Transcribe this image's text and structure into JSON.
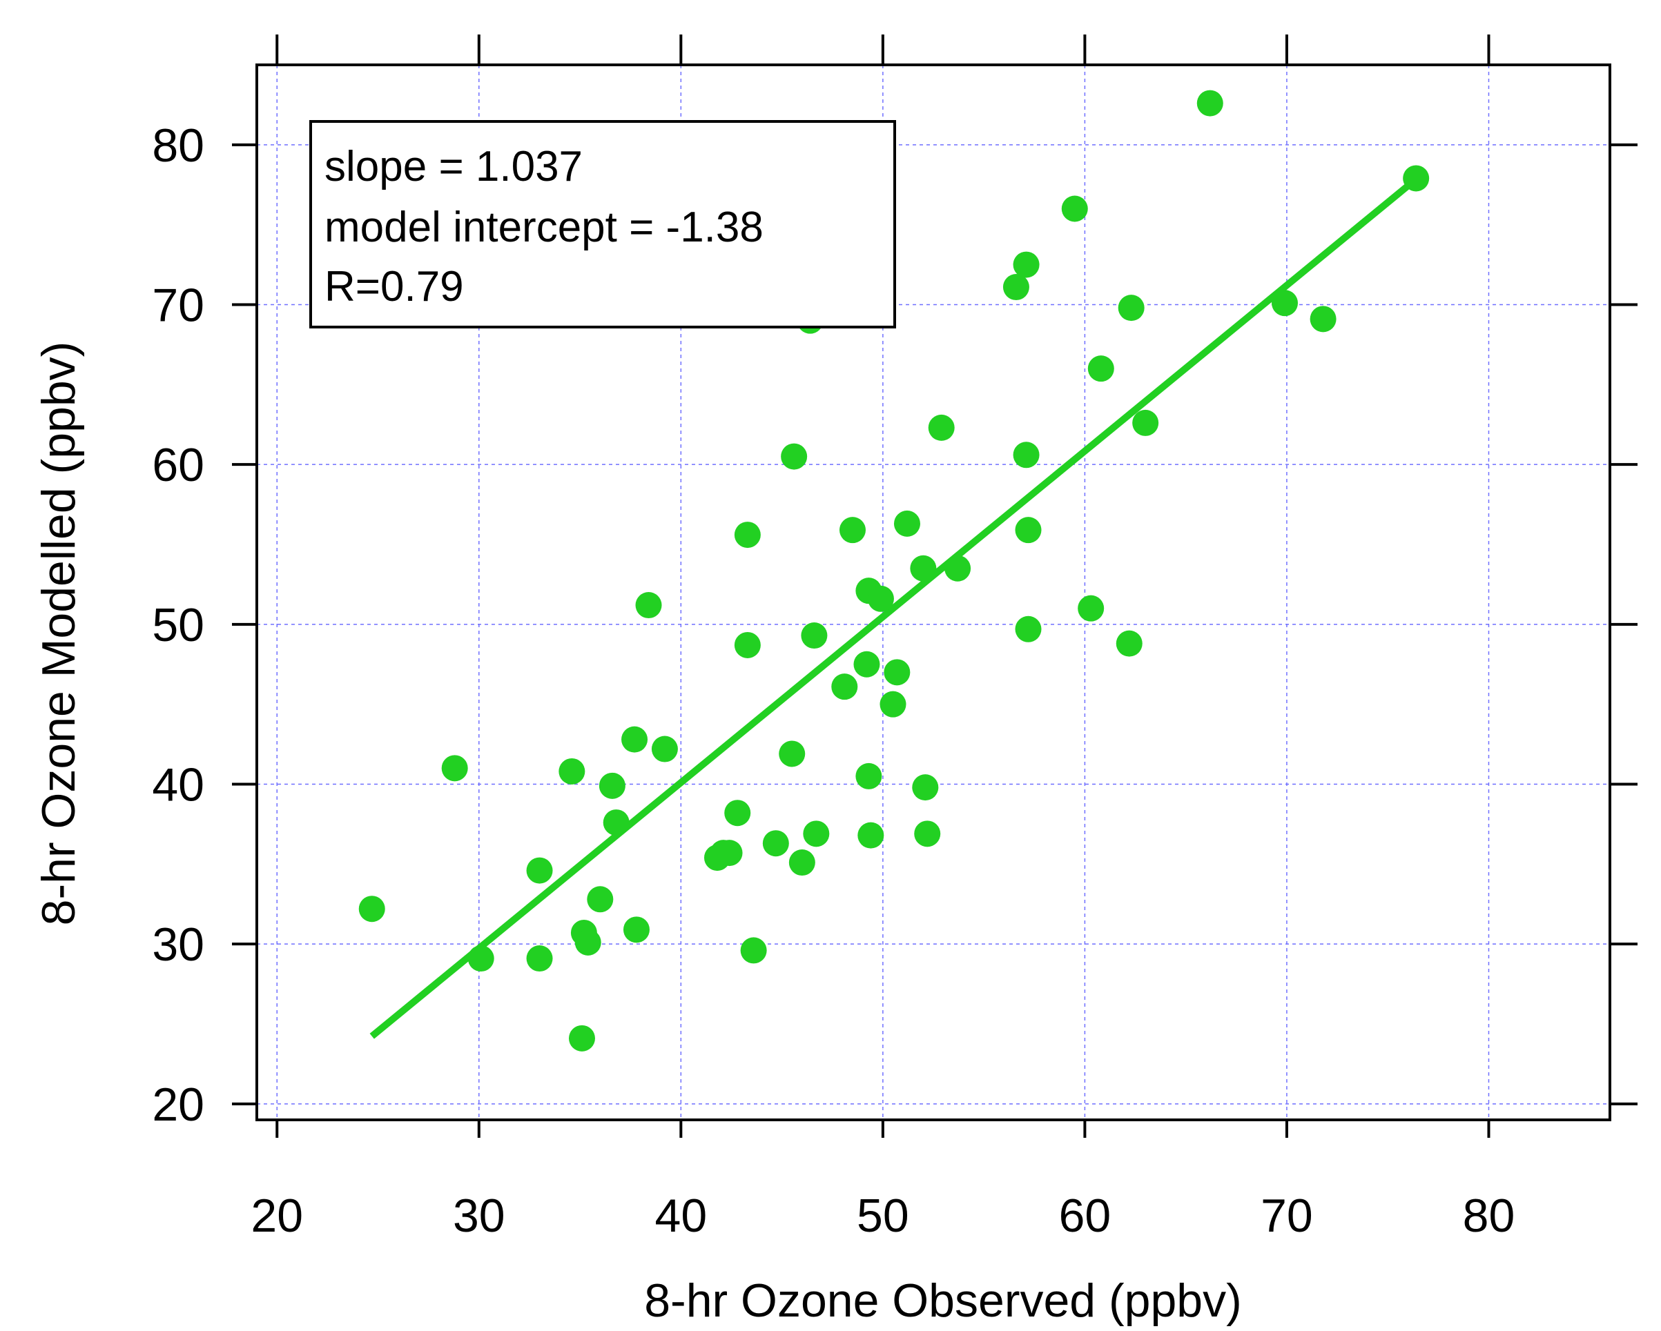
{
  "chart_data": {
    "type": "scatter",
    "title": "",
    "xlabel": "8-hr Ozone Observed (ppbv)",
    "ylabel": "8-hr Ozone Modelled (ppbv)",
    "xlim": [
      19,
      86
    ],
    "ylim": [
      19,
      85
    ],
    "x_ticks": [
      20,
      30,
      40,
      50,
      60,
      70,
      80
    ],
    "y_ticks": [
      20,
      30,
      40,
      50,
      60,
      70,
      80
    ],
    "x_tick_labels": [
      "20",
      "30",
      "40",
      "50",
      "60",
      "70",
      "80"
    ],
    "y_tick_labels": [
      "20",
      "30",
      "40",
      "50",
      "60",
      "70",
      "80"
    ],
    "grid": true,
    "colors": {
      "points": "#22d022",
      "fit_line": "#22d022",
      "grid": "#6f6fff",
      "axes": "#000000"
    },
    "annotations": [
      "slope = 1.037",
      "model intercept = -1.38",
      "R=0.79"
    ],
    "annotation_placement": "top-left",
    "fit_line": {
      "slope": 1.037,
      "intercept": -1.38,
      "x_range": [
        24.7,
        76.4
      ]
    },
    "series": [
      {
        "name": "Observed vs Modelled",
        "points": [
          [
            24.7,
            32.2
          ],
          [
            28.8,
            41.0
          ],
          [
            30.1,
            29.1
          ],
          [
            33.0,
            34.6
          ],
          [
            33.0,
            29.1
          ],
          [
            34.6,
            40.8
          ],
          [
            35.1,
            24.1
          ],
          [
            35.2,
            30.7
          ],
          [
            35.4,
            30.1
          ],
          [
            36.0,
            32.8
          ],
          [
            36.6,
            39.9
          ],
          [
            36.8,
            37.6
          ],
          [
            37.7,
            42.8
          ],
          [
            37.8,
            30.9
          ],
          [
            38.4,
            51.2
          ],
          [
            39.2,
            42.2
          ],
          [
            41.8,
            35.4
          ],
          [
            42.1,
            35.7
          ],
          [
            42.4,
            35.7
          ],
          [
            42.8,
            38.2
          ],
          [
            43.3,
            55.6
          ],
          [
            43.3,
            48.7
          ],
          [
            43.6,
            29.6
          ],
          [
            44.7,
            36.3
          ],
          [
            45.5,
            41.9
          ],
          [
            45.6,
            60.5
          ],
          [
            46.0,
            35.1
          ],
          [
            46.4,
            69.0
          ],
          [
            46.6,
            49.3
          ],
          [
            46.7,
            36.9
          ],
          [
            48.1,
            46.1
          ],
          [
            48.5,
            55.9
          ],
          [
            49.2,
            47.5
          ],
          [
            49.3,
            40.5
          ],
          [
            49.3,
            52.1
          ],
          [
            49.4,
            36.8
          ],
          [
            49.9,
            51.6
          ],
          [
            50.5,
            45.0
          ],
          [
            50.7,
            47.0
          ],
          [
            51.2,
            56.3
          ],
          [
            52.0,
            53.5
          ],
          [
            52.1,
            39.8
          ],
          [
            52.2,
            36.9
          ],
          [
            52.9,
            62.3
          ],
          [
            53.7,
            53.5
          ],
          [
            56.6,
            71.1
          ],
          [
            57.1,
            60.6
          ],
          [
            57.1,
            72.5
          ],
          [
            57.2,
            55.9
          ],
          [
            57.2,
            49.7
          ],
          [
            59.5,
            76.0
          ],
          [
            60.3,
            51.0
          ],
          [
            60.8,
            66.0
          ],
          [
            62.2,
            48.8
          ],
          [
            62.3,
            69.8
          ],
          [
            63.0,
            62.6
          ],
          [
            66.2,
            82.6
          ],
          [
            69.9,
            70.1
          ],
          [
            71.8,
            69.1
          ],
          [
            76.4,
            77.9
          ]
        ]
      }
    ]
  }
}
